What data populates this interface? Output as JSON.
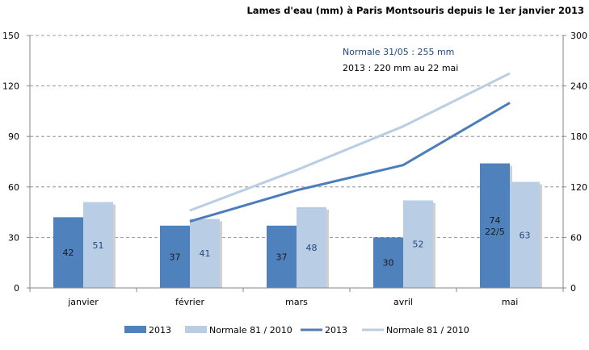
{
  "chart_data": {
    "type": "bar",
    "title": "Lames d'eau (mm) à Paris Montsouris depuis le 1er janvier 2013",
    "categories": [
      "janvier",
      "février",
      "mars",
      "avril",
      "mai"
    ],
    "y_left": {
      "min": 0,
      "max": 150,
      "ticks": [
        0,
        30,
        60,
        90,
        120,
        150
      ]
    },
    "y_right": {
      "min": 0,
      "max": 300,
      "ticks": [
        0,
        60,
        120,
        180,
        240,
        300
      ]
    },
    "grid": true,
    "legend_position": "bottom",
    "series": [
      {
        "name": "2013",
        "kind": "bar",
        "axis": "left",
        "color": "#4f81bd",
        "values": [
          42,
          37,
          37,
          30,
          74
        ],
        "labels": [
          "42",
          "37",
          "37",
          "30",
          "74\n22/5"
        ],
        "label_color": "#1a1a1a"
      },
      {
        "name": "Normale 81 / 2010",
        "kind": "bar",
        "axis": "left",
        "color": "#b9cde5",
        "values": [
          51,
          41,
          48,
          52,
          63
        ],
        "labels": [
          "51",
          "41",
          "48",
          "52",
          "63"
        ],
        "label_color": "#1f497d"
      },
      {
        "name": "2013",
        "kind": "line",
        "axis": "right",
        "color": "#4a7ebb",
        "values": [
          null,
          79,
          116,
          146,
          220
        ]
      },
      {
        "name": "Normale 81 / 2010",
        "kind": "line",
        "axis": "right",
        "color": "#b9cde5",
        "values": [
          null,
          92,
          140,
          192,
          255
        ]
      }
    ],
    "annotations": [
      {
        "text": "Normale 31/05 : 255 mm",
        "color": "#1f497d"
      },
      {
        "text": "2013 : 220 mm au 22 mai",
        "color": "#000000"
      }
    ]
  }
}
